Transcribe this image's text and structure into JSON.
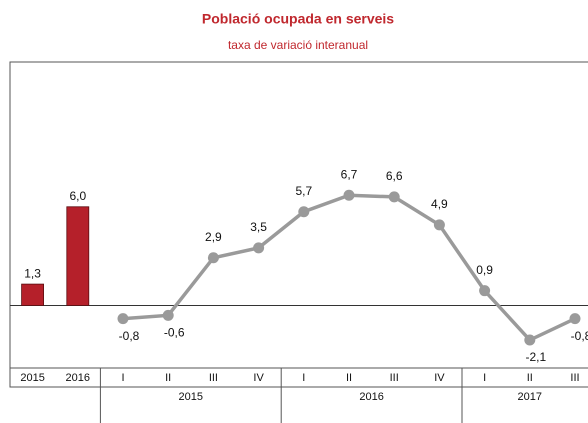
{
  "chart_data": {
    "type": "combo",
    "title": "Població ocupada en serveis",
    "subtitle": "taxa de variació interanual",
    "categories": [
      "2015",
      "2016",
      "I",
      "II",
      "III",
      "IV",
      "I",
      "II",
      "III",
      "IV",
      "I",
      "II",
      "III"
    ],
    "groups": [
      {
        "label": "2015",
        "span": 4
      },
      {
        "label": "2016",
        "span": 4
      },
      {
        "label": "2017",
        "span": 3
      }
    ],
    "series": [
      {
        "type": "bar",
        "color": "#b5202a",
        "values": [
          1.3,
          6.0,
          null,
          null,
          null,
          null,
          null,
          null,
          null,
          null,
          null,
          null,
          null
        ],
        "value_labels": [
          "1,3",
          "6,0",
          null,
          null,
          null,
          null,
          null,
          null,
          null,
          null,
          null,
          null,
          null
        ]
      },
      {
        "type": "line",
        "color": "#9a9a9a",
        "values": [
          null,
          null,
          -0.8,
          -0.6,
          2.9,
          3.5,
          5.7,
          6.7,
          6.6,
          4.9,
          0.9,
          -2.1,
          -0.8
        ],
        "value_labels": [
          null,
          null,
          "-0,8",
          "-0,6",
          "2,9",
          "3,5",
          "5,7",
          "6,7",
          "6,6",
          "4,9",
          "0,9",
          "-2,1",
          "-0,8"
        ]
      }
    ],
    "ylim": [
      -3.8,
      14.8
    ]
  }
}
